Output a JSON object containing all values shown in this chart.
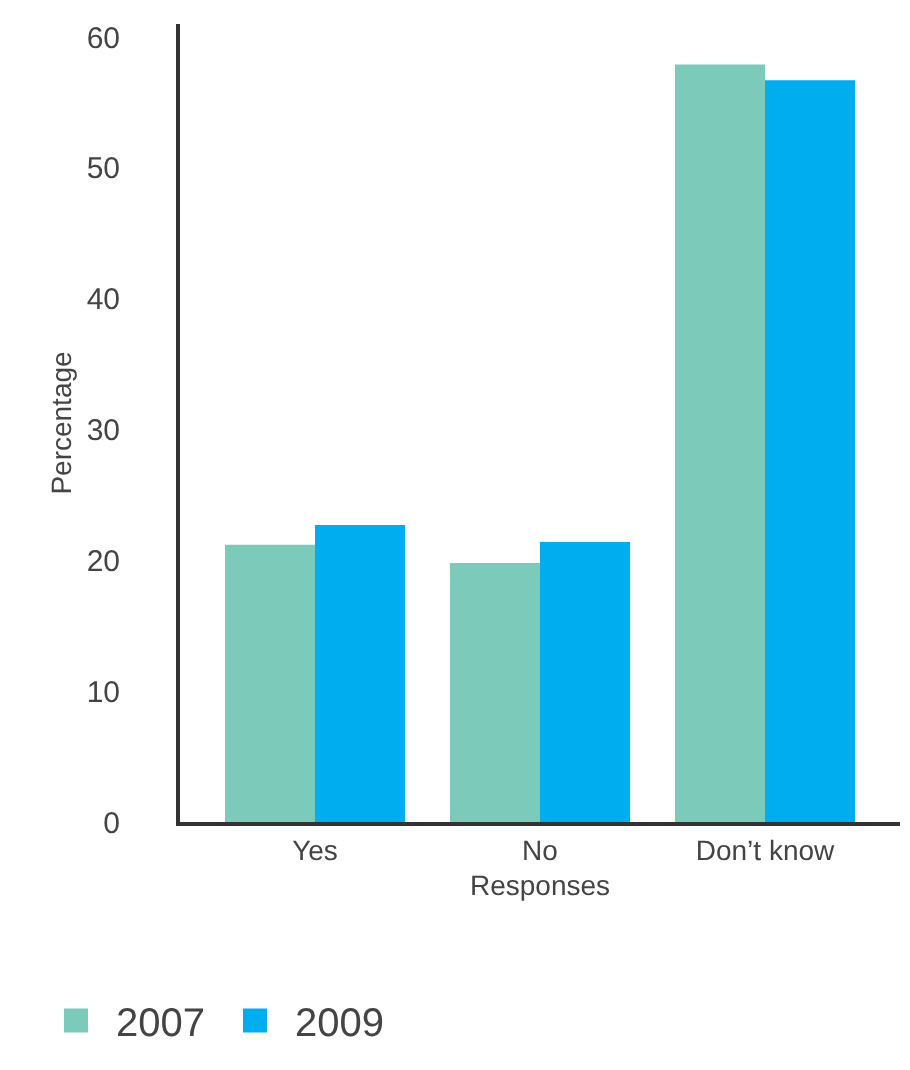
{
  "chart_data": {
    "type": "bar",
    "xlabel": "Responses",
    "ylabel": "Percentage",
    "categories": [
      "Yes",
      "No",
      "Don’t know"
    ],
    "series": [
      {
        "name": "2007",
        "color": "#7ccbba",
        "values": [
          21.2,
          19.8,
          57.9
        ]
      },
      {
        "name": "2009",
        "color": "#00aeef",
        "values": [
          22.7,
          21.4,
          56.7
        ]
      }
    ],
    "ylim": [
      0,
      61
    ],
    "yticks": [
      0,
      10,
      20,
      30,
      40,
      50,
      60
    ],
    "legend": "bottom left"
  }
}
